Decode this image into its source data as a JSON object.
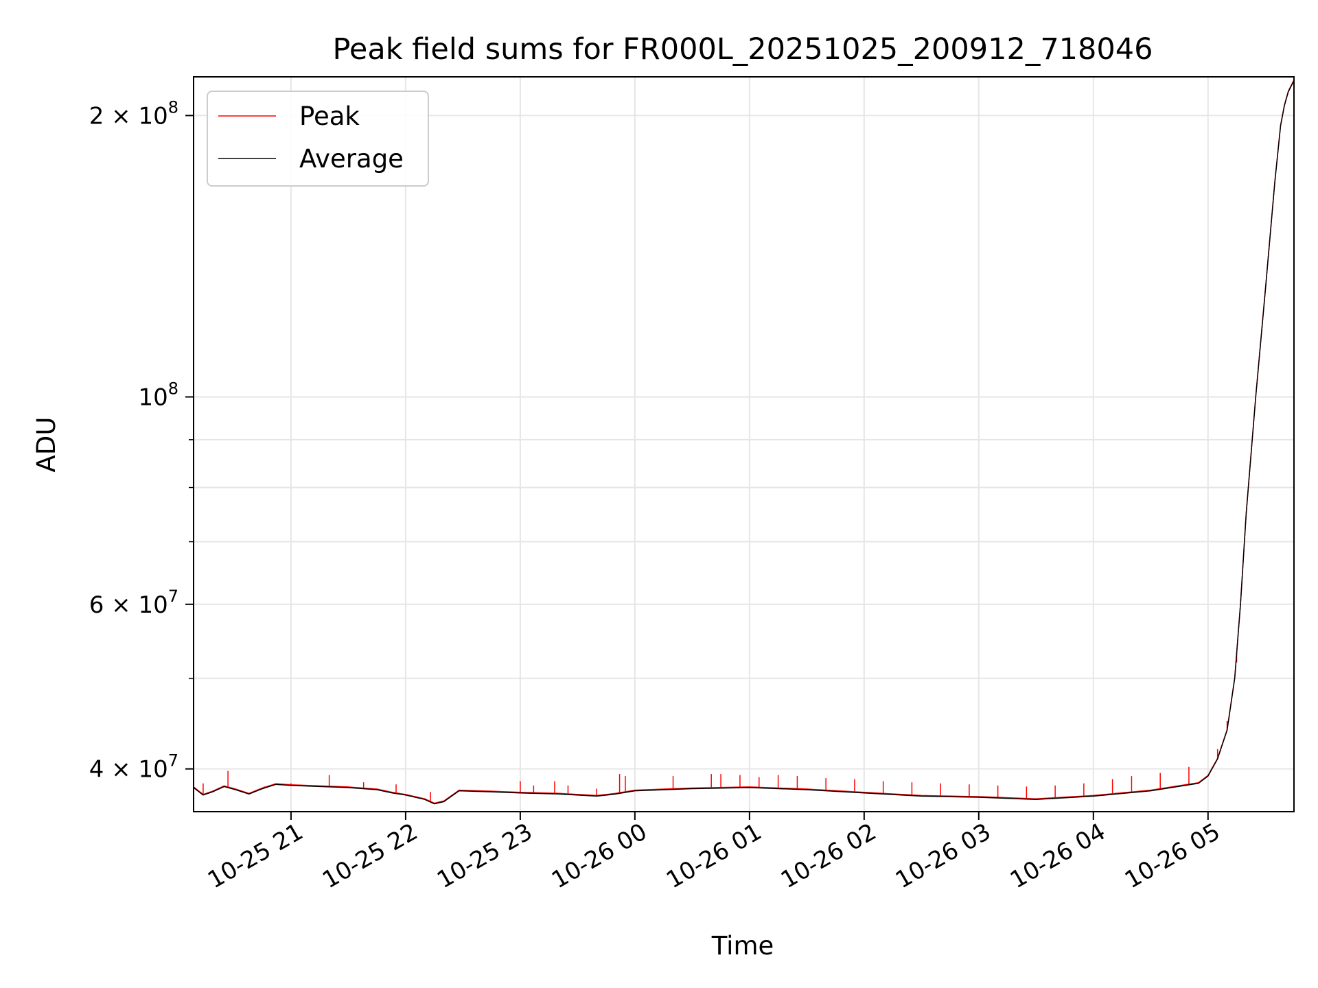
{
  "chart_data": {
    "type": "line",
    "title": "Peak field sums for FR000L_20251025_200912_718046",
    "xlabel": "Time",
    "ylabel": "ADU",
    "y_scale": "log",
    "ylim": [
      36000000,
      220000000
    ],
    "xlim": [
      "2025-10-25 20:09",
      "2025-10-26 05:45"
    ],
    "grid": true,
    "legend_position": "top-left",
    "x_ticks": [
      {
        "value": "2025-10-25 21:00",
        "label": "10-25 21"
      },
      {
        "value": "2025-10-25 22:00",
        "label": "10-25 22"
      },
      {
        "value": "2025-10-25 23:00",
        "label": "10-25 23"
      },
      {
        "value": "2025-10-26 00:00",
        "label": "10-26 00"
      },
      {
        "value": "2025-10-26 01:00",
        "label": "10-26 01"
      },
      {
        "value": "2025-10-26 02:00",
        "label": "10-26 02"
      },
      {
        "value": "2025-10-26 03:00",
        "label": "10-26 03"
      },
      {
        "value": "2025-10-26 04:00",
        "label": "10-26 04"
      },
      {
        "value": "2025-10-26 05:00",
        "label": "10-26 05"
      }
    ],
    "y_ticks": [
      {
        "value": 40000000,
        "base": "4 × 10",
        "exp": "7"
      },
      {
        "value": 60000000,
        "base": "6 × 10",
        "exp": "7"
      },
      {
        "value": 100000000,
        "base": "10",
        "exp": "8"
      },
      {
        "value": 200000000,
        "base": "2 × 10",
        "exp": "8"
      }
    ],
    "y_minor_ticks": [
      50000000,
      70000000,
      80000000,
      90000000
    ],
    "series": [
      {
        "name": "Peak",
        "color": "#ff0000",
        "baseline": "same as Average",
        "spikes": [
          {
            "x": "2025-10-25 20:14",
            "y": 38600000
          },
          {
            "x": "2025-10-25 20:27",
            "y": 39800000
          },
          {
            "x": "2025-10-25 20:46",
            "y": 38300000
          },
          {
            "x": "2025-10-25 21:00",
            "y": 38600000
          },
          {
            "x": "2025-10-25 21:20",
            "y": 39400000
          },
          {
            "x": "2025-10-25 21:38",
            "y": 38700000
          },
          {
            "x": "2025-10-25 21:55",
            "y": 38500000
          },
          {
            "x": "2025-10-25 22:13",
            "y": 37800000
          },
          {
            "x": "2025-10-25 23:00",
            "y": 38800000
          },
          {
            "x": "2025-10-25 23:07",
            "y": 38400000
          },
          {
            "x": "2025-10-25 23:18",
            "y": 38800000
          },
          {
            "x": "2025-10-25 23:25",
            "y": 38400000
          },
          {
            "x": "2025-10-25 23:40",
            "y": 38100000
          },
          {
            "x": "2025-10-25 23:52",
            "y": 39500000
          },
          {
            "x": "2025-10-25 23:55",
            "y": 39300000
          },
          {
            "x": "2025-10-26 00:20",
            "y": 39300000
          },
          {
            "x": "2025-10-26 00:40",
            "y": 39500000
          },
          {
            "x": "2025-10-26 00:45",
            "y": 39500000
          },
          {
            "x": "2025-10-26 00:55",
            "y": 39400000
          },
          {
            "x": "2025-10-26 01:05",
            "y": 39200000
          },
          {
            "x": "2025-10-26 01:15",
            "y": 39400000
          },
          {
            "x": "2025-10-26 01:25",
            "y": 39300000
          },
          {
            "x": "2025-10-26 01:40",
            "y": 39100000
          },
          {
            "x": "2025-10-26 01:55",
            "y": 39000000
          },
          {
            "x": "2025-10-26 02:10",
            "y": 38800000
          },
          {
            "x": "2025-10-26 02:25",
            "y": 38700000
          },
          {
            "x": "2025-10-26 02:40",
            "y": 38600000
          },
          {
            "x": "2025-10-26 02:55",
            "y": 38500000
          },
          {
            "x": "2025-10-26 03:10",
            "y": 38400000
          },
          {
            "x": "2025-10-26 03:25",
            "y": 38300000
          },
          {
            "x": "2025-10-26 03:40",
            "y": 38400000
          },
          {
            "x": "2025-10-26 03:55",
            "y": 38600000
          },
          {
            "x": "2025-10-26 04:10",
            "y": 39000000
          },
          {
            "x": "2025-10-26 04:20",
            "y": 39300000
          },
          {
            "x": "2025-10-26 04:35",
            "y": 39600000
          },
          {
            "x": "2025-10-26 04:50",
            "y": 40200000
          },
          {
            "x": "2025-10-26 05:05",
            "y": 42000000
          },
          {
            "x": "2025-10-26 05:10",
            "y": 45000000
          },
          {
            "x": "2025-10-26 05:15",
            "y": 52000000
          }
        ]
      },
      {
        "name": "Average",
        "color": "#000000",
        "x": [
          "2025-10-25 20:09",
          "2025-10-25 20:14",
          "2025-10-25 20:19",
          "2025-10-25 20:25",
          "2025-10-25 20:31",
          "2025-10-25 20:38",
          "2025-10-25 20:45",
          "2025-10-25 20:52",
          "2025-10-25 21:00",
          "2025-10-25 21:15",
          "2025-10-25 21:30",
          "2025-10-25 21:45",
          "2025-10-25 21:53",
          "2025-10-25 22:00",
          "2025-10-25 22:10",
          "2025-10-25 22:15",
          "2025-10-25 22:20",
          "2025-10-25 22:28",
          "2025-10-25 22:45",
          "2025-10-25 23:00",
          "2025-10-25 23:20",
          "2025-10-25 23:40",
          "2025-10-25 23:50",
          "2025-10-26 00:00",
          "2025-10-26 00:30",
          "2025-10-26 01:00",
          "2025-10-26 01:30",
          "2025-10-26 02:00",
          "2025-10-26 02:30",
          "2025-10-26 03:00",
          "2025-10-26 03:30",
          "2025-10-26 04:00",
          "2025-10-26 04:30",
          "2025-10-26 04:55",
          "2025-10-26 05:00",
          "2025-10-26 05:05",
          "2025-10-26 05:10",
          "2025-10-26 05:14",
          "2025-10-26 05:17",
          "2025-10-26 05:20",
          "2025-10-26 05:25",
          "2025-10-26 05:30",
          "2025-10-26 05:35",
          "2025-10-26 05:38",
          "2025-10-26 05:40",
          "2025-10-26 05:42",
          "2025-10-26 05:45"
        ],
        "y": [
          38200000,
          37500000,
          37800000,
          38300000,
          38000000,
          37600000,
          38100000,
          38500000,
          38400000,
          38300000,
          38200000,
          38000000,
          37700000,
          37500000,
          37100000,
          36700000,
          36900000,
          37900000,
          37800000,
          37700000,
          37600000,
          37400000,
          37600000,
          37900000,
          38100000,
          38200000,
          38000000,
          37700000,
          37400000,
          37300000,
          37100000,
          37400000,
          37900000,
          38600000,
          39300000,
          41000000,
          44000000,
          50000000,
          60000000,
          75000000,
          100000000,
          130000000,
          170000000,
          195000000,
          205000000,
          212000000,
          218000000
        ]
      }
    ]
  }
}
